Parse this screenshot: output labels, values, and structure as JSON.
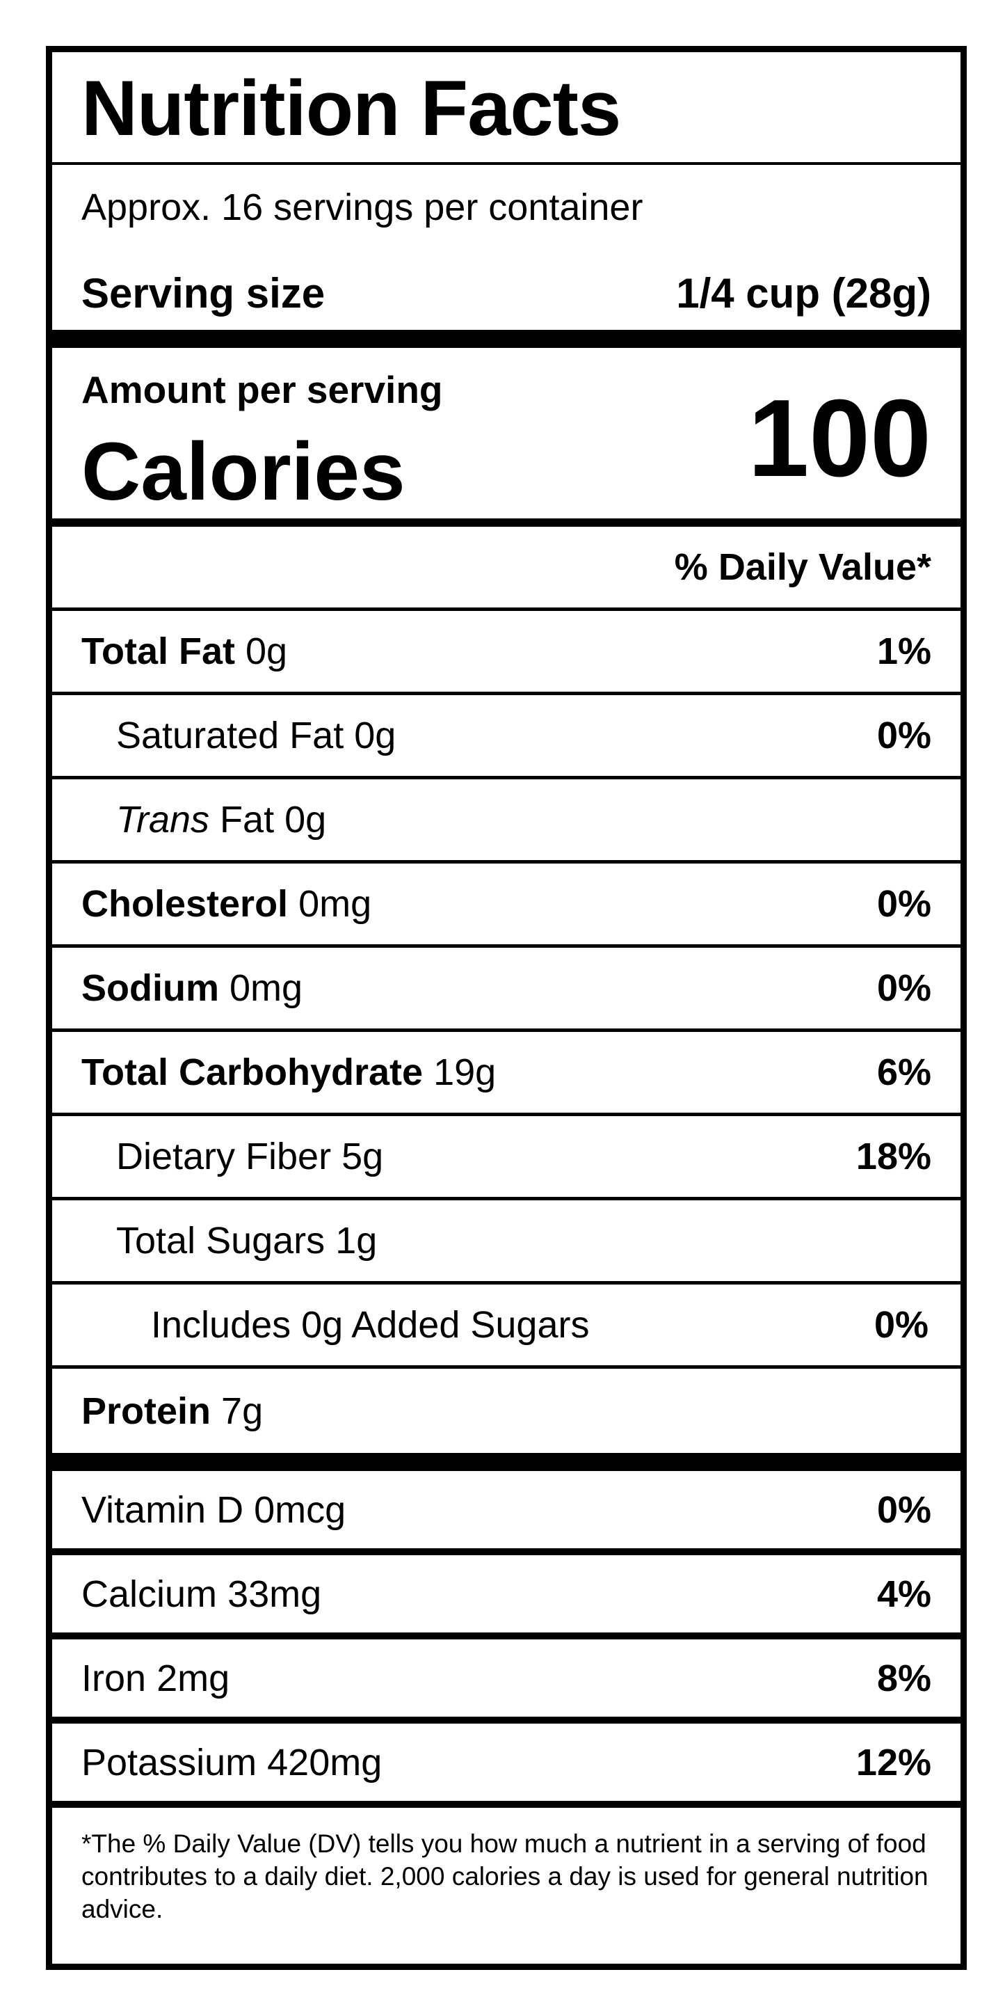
{
  "title": "Nutrition Facts",
  "servings_per_container": "Approx. 16 servings per container",
  "serving_size": {
    "label": "Serving size",
    "value": "1/4 cup (28g)"
  },
  "amount_per_serving": "Amount per serving",
  "calories": {
    "label": "Calories",
    "value": "100"
  },
  "daily_value_header": "% Daily Value*",
  "nutrients": [
    {
      "name": "Total Fat",
      "amount": "0g",
      "dv": "1%"
    },
    {
      "name": "Saturated Fat",
      "amount": "0g",
      "dv": "0%"
    },
    {
      "name": "Trans",
      "name_suffix": "Fat",
      "amount": "0g",
      "dv": ""
    },
    {
      "name": "Cholesterol",
      "amount": "0mg",
      "dv": "0%"
    },
    {
      "name": "Sodium",
      "amount": "0mg",
      "dv": "0%"
    },
    {
      "name": "Total Carbohydrate",
      "amount": "19g",
      "dv": "6%"
    },
    {
      "name": "Dietary Fiber",
      "amount": "5g",
      "dv": "18%"
    },
    {
      "name": "Total Sugars",
      "amount": "1g",
      "dv": ""
    },
    {
      "name": "Includes 0g Added Sugars",
      "amount": "",
      "dv": "0%"
    },
    {
      "name": "Protein",
      "amount": "7g",
      "dv": ""
    }
  ],
  "vitamins": [
    {
      "name": "Vitamin D",
      "amount": "0mcg",
      "dv": "0%"
    },
    {
      "name": "Calcium",
      "amount": "33mg",
      "dv": "4%"
    },
    {
      "name": "Iron",
      "amount": "2mg",
      "dv": "8%"
    },
    {
      "name": "Potassium",
      "amount": "420mg",
      "dv": "12%"
    }
  ],
  "footnote": "*The % Daily Value (DV) tells you how much a nutrient in a serving of food contributes to a daily diet. 2,000 calories a day is used for general nutrition advice."
}
